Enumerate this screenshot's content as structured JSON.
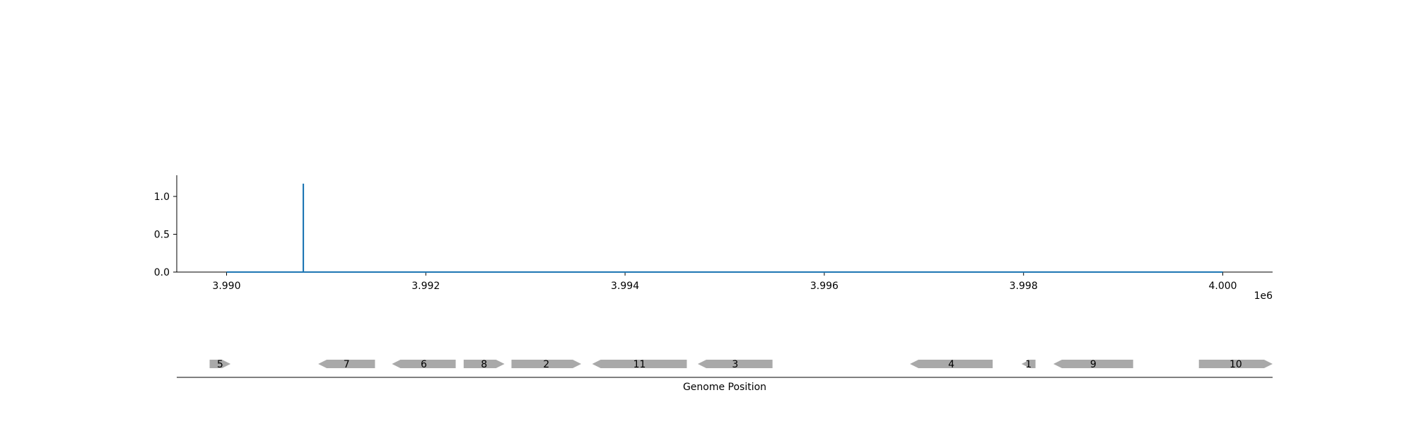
{
  "chart_data": [
    {
      "type": "line",
      "title": "",
      "xlabel": "",
      "ylabel": "",
      "x_offset_label": "1e6",
      "xlim": [
        3989500,
        4000500
      ],
      "ylim": [
        0,
        1.28
      ],
      "x_ticks": [
        {
          "value": 3990000,
          "label": "3.990"
        },
        {
          "value": 3992000,
          "label": "3.992"
        },
        {
          "value": 3994000,
          "label": "3.994"
        },
        {
          "value": 3996000,
          "label": "3.996"
        },
        {
          "value": 3998000,
          "label": "3.998"
        },
        {
          "value": 4000000,
          "label": "4.000"
        }
      ],
      "y_ticks": [
        {
          "value": 0.0,
          "label": "0.0"
        },
        {
          "value": 0.5,
          "label": "0.5"
        },
        {
          "value": 1.0,
          "label": "1.0"
        }
      ],
      "grid": false,
      "color": "#1f77b4",
      "series": [
        {
          "x": [
            3990000,
            3990770,
            3990770,
            3990771,
            3990771,
            4000000
          ],
          "y": [
            0,
            0,
            1.16,
            1.16,
            0,
            0
          ]
        }
      ]
    },
    {
      "type": "gene_track",
      "xlabel": "Genome Position",
      "xlim": [
        3989500,
        4000500
      ],
      "color": "#a9a9a9",
      "genes": [
        {
          "label": "5",
          "start": 3989830,
          "end": 3990040,
          "strand": 1
        },
        {
          "label": "7",
          "start": 3990920,
          "end": 3991490,
          "strand": -1
        },
        {
          "label": "6",
          "start": 3991660,
          "end": 3992300,
          "strand": -1
        },
        {
          "label": "8",
          "start": 3992380,
          "end": 3992790,
          "strand": 1
        },
        {
          "label": "2",
          "start": 3992860,
          "end": 3993560,
          "strand": 1
        },
        {
          "label": "11",
          "start": 3993670,
          "end": 3994620,
          "strand": -1
        },
        {
          "label": "3",
          "start": 3994730,
          "end": 3995480,
          "strand": -1
        },
        {
          "label": "4",
          "start": 3996860,
          "end": 3997690,
          "strand": -1
        },
        {
          "label": "1",
          "start": 3997980,
          "end": 3998120,
          "strand": -1
        },
        {
          "label": "9",
          "start": 3998300,
          "end": 3999100,
          "strand": -1
        },
        {
          "label": "10",
          "start": 3999760,
          "end": 4000500,
          "strand": 1
        }
      ]
    }
  ]
}
